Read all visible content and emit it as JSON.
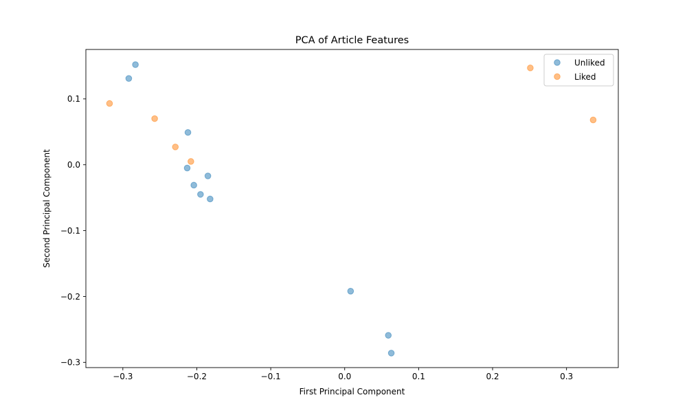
{
  "chart_data": {
    "type": "scatter",
    "title": "PCA of Article Features",
    "xlabel": "First Principal Component",
    "ylabel": "Second Principal Component",
    "xlim": [
      -0.35,
      0.37
    ],
    "ylim": [
      -0.308,
      0.175
    ],
    "xticks": [
      -0.3,
      -0.2,
      -0.1,
      0.0,
      0.1,
      0.2,
      0.3
    ],
    "xtick_labels": [
      "−0.3",
      "−0.2",
      "−0.1",
      "0.0",
      "0.1",
      "0.2",
      "0.3"
    ],
    "yticks": [
      -0.3,
      -0.2,
      -0.1,
      0.0,
      0.1
    ],
    "ytick_labels": [
      "−0.3",
      "−0.2",
      "−0.1",
      "0.0",
      "0.1"
    ],
    "grid": false,
    "legend_position": "top-right",
    "series": [
      {
        "name": "Unliked",
        "color": "#1f77b4",
        "points": [
          {
            "x": -0.283,
            "y": 0.152
          },
          {
            "x": -0.292,
            "y": 0.131
          },
          {
            "x": -0.212,
            "y": 0.049
          },
          {
            "x": -0.213,
            "y": -0.005
          },
          {
            "x": -0.185,
            "y": -0.017
          },
          {
            "x": -0.204,
            "y": -0.031
          },
          {
            "x": -0.195,
            "y": -0.045
          },
          {
            "x": -0.182,
            "y": -0.052
          },
          {
            "x": 0.008,
            "y": -0.192
          },
          {
            "x": 0.059,
            "y": -0.259
          },
          {
            "x": 0.063,
            "y": -0.286
          }
        ]
      },
      {
        "name": "Liked",
        "color": "#ff7f0e",
        "points": [
          {
            "x": -0.318,
            "y": 0.093
          },
          {
            "x": -0.257,
            "y": 0.07
          },
          {
            "x": -0.229,
            "y": 0.027
          },
          {
            "x": -0.208,
            "y": 0.005
          },
          {
            "x": 0.251,
            "y": 0.147
          },
          {
            "x": 0.336,
            "y": 0.068
          }
        ]
      }
    ]
  }
}
